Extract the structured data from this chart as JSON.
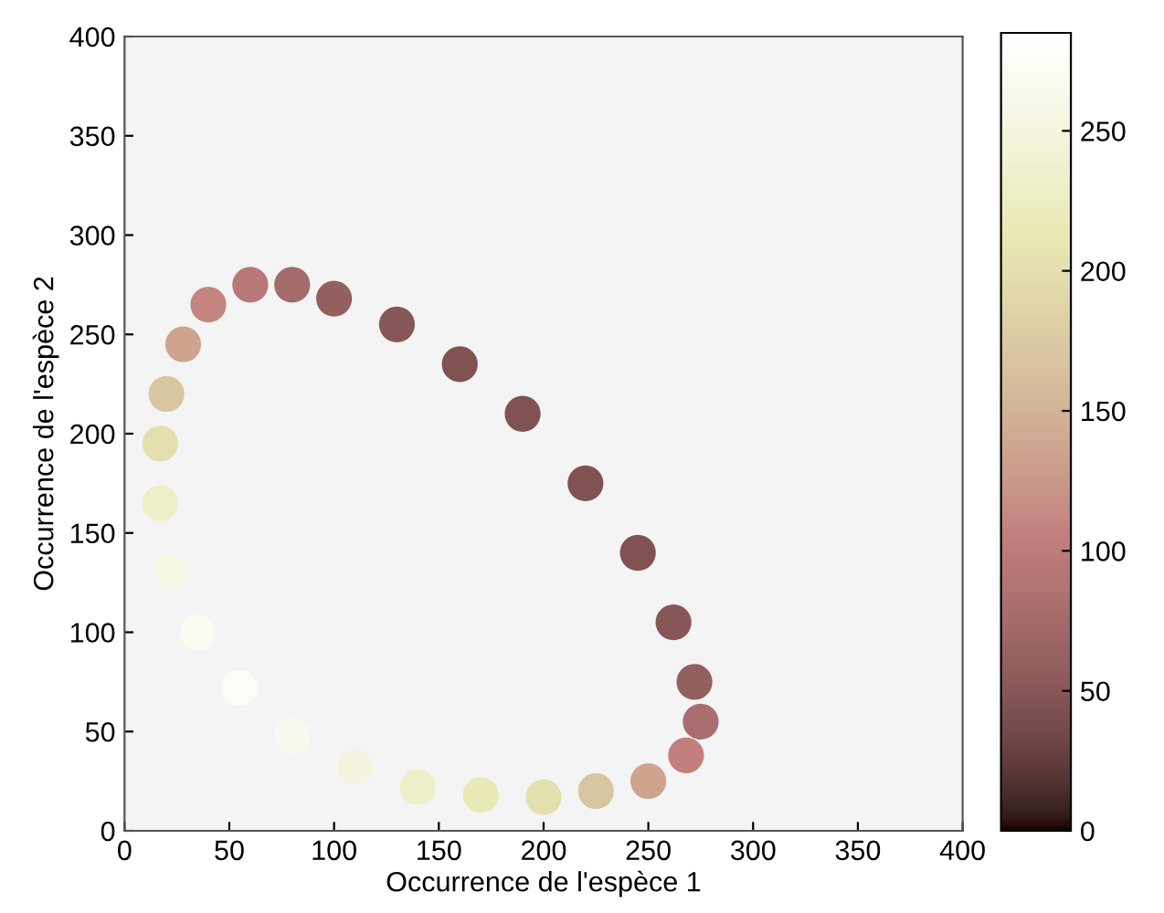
{
  "chart_data": {
    "type": "scatter",
    "xlabel": "Occurrence de l'espèce 1",
    "ylabel": "Occurrence de l'espèce 2",
    "x": [
      40,
      60,
      80,
      100,
      130,
      160,
      190,
      220,
      245,
      262,
      272,
      275,
      268,
      250,
      225,
      200,
      170,
      140,
      110,
      80,
      55,
      35,
      23,
      17,
      17,
      20,
      28
    ],
    "values": [
      265,
      275,
      275,
      268,
      255,
      235,
      210,
      175,
      140,
      105,
      75,
      55,
      38,
      25,
      20,
      17,
      18,
      22,
      32,
      48,
      72,
      100,
      130,
      165,
      195,
      220,
      245
    ],
    "cvalues": [
      110,
      95,
      75,
      60,
      50,
      45,
      45,
      45,
      45,
      50,
      60,
      80,
      105,
      135,
      170,
      200,
      215,
      230,
      250,
      265,
      275,
      270,
      255,
      230,
      200,
      170,
      135
    ],
    "xlim": [
      0,
      400
    ],
    "ylim": [
      0,
      400
    ],
    "xticks": [
      0,
      50,
      100,
      150,
      200,
      250,
      300,
      350,
      400
    ],
    "yticks": [
      0,
      50,
      100,
      150,
      200,
      250,
      300,
      350,
      400
    ],
    "clim": [
      0,
      285
    ],
    "cticks": [
      0,
      50,
      100,
      150,
      200,
      250
    ],
    "grid": false,
    "legend": false
  }
}
